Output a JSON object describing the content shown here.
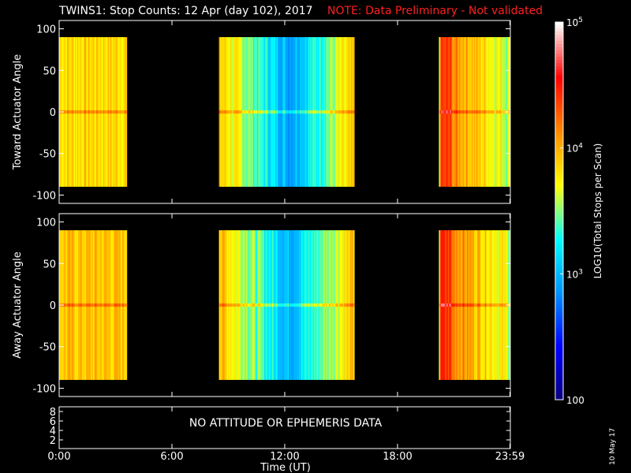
{
  "title": {
    "main": "TWINS1: Stop Counts: 12 Apr (day 102), 2017",
    "note": "NOTE: Data Preliminary - Not validated"
  },
  "date_stamp": "10 May 17",
  "chart_data": [
    {
      "type": "heatmap",
      "name": "Toward Actuator Angle",
      "ylabel": "Toward Actuator Angle",
      "ylim": [
        -110,
        110
      ],
      "yticks": [
        100,
        50,
        0,
        -50,
        -100
      ],
      "xlim": [
        0,
        24
      ],
      "data_y_range": [
        -90,
        90
      ],
      "data_intervals_hours": [
        [
          0.0,
          3.6
        ],
        [
          8.5,
          15.7
        ],
        [
          20.2,
          24.0
        ]
      ],
      "data_gaps_hours": [
        [
          3.6,
          8.5
        ],
        [
          15.7,
          20.2
        ]
      ]
    },
    {
      "type": "heatmap",
      "name": "Away Actuator Angle",
      "ylabel": "Away Actuator Angle",
      "ylim": [
        -110,
        110
      ],
      "yticks": [
        100,
        50,
        0,
        -50,
        -100
      ],
      "xlim": [
        0,
        24
      ],
      "data_y_range": [
        -90,
        90
      ],
      "data_intervals_hours": [
        [
          0.0,
          3.6
        ],
        [
          8.5,
          15.7
        ],
        [
          20.2,
          24.0
        ]
      ],
      "data_gaps_hours": [
        [
          3.6,
          8.5
        ],
        [
          15.7,
          20.2
        ]
      ]
    },
    {
      "type": "line",
      "name": "attitude",
      "yticks": [
        "8",
        "6",
        "4",
        "2"
      ],
      "message": "NO ATTITUDE OR EPHEMERIS DATA"
    }
  ],
  "xaxis": {
    "label": "Time (UT)",
    "ticks": [
      {
        "hour": 0,
        "label": "0:00"
      },
      {
        "hour": 6,
        "label": "6:00"
      },
      {
        "hour": 12,
        "label": "12:00"
      },
      {
        "hour": 18,
        "label": "18:00"
      },
      {
        "hour": 23.98,
        "label": "23:59"
      }
    ]
  },
  "colorbar": {
    "label": "LOG10(Total Stops per Scan)",
    "scale": "log",
    "range": [
      100,
      100000
    ],
    "ticks": [
      {
        "value": 100000,
        "label": "10^5"
      },
      {
        "value": 10000,
        "label": "10^4"
      },
      {
        "value": 1000,
        "label": "10^3"
      },
      {
        "value": 100,
        "label": "100"
      }
    ],
    "colormap": [
      "#08007a",
      "#0000ff",
      "#0090ff",
      "#00ffff",
      "#ffff00",
      "#ff8800",
      "#ff0000",
      "#ffffff"
    ]
  }
}
